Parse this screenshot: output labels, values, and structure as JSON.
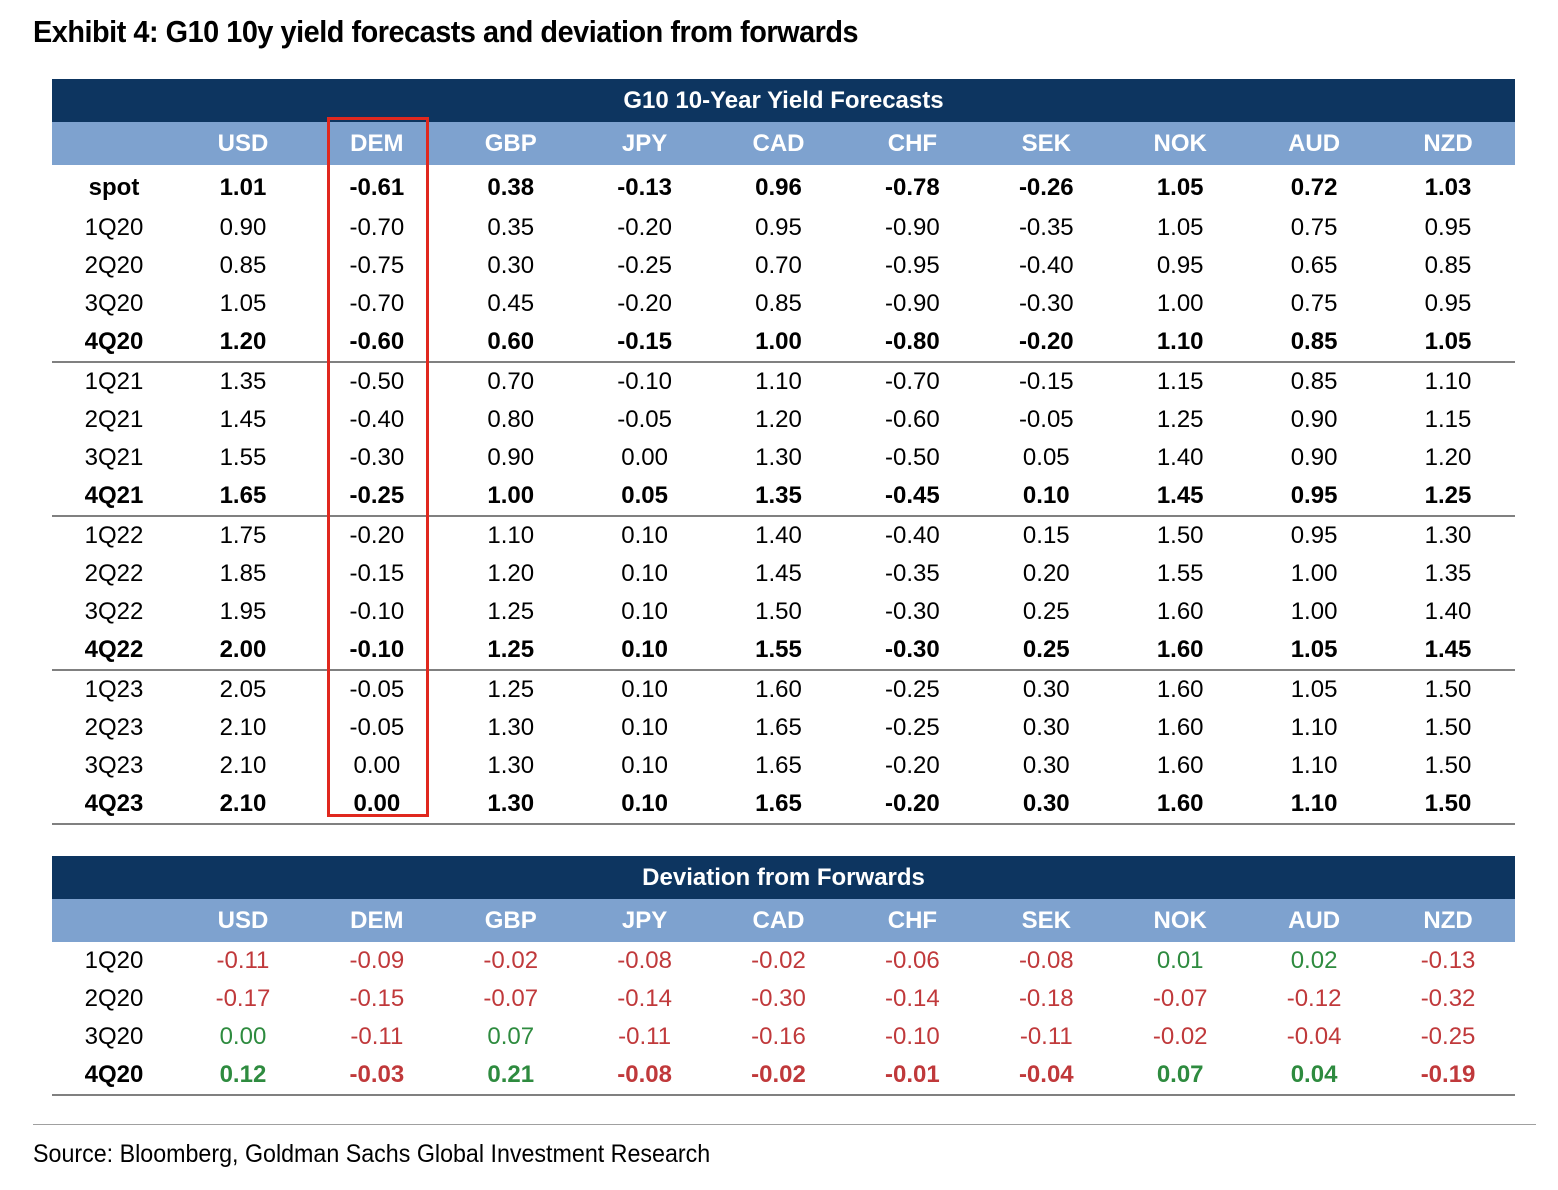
{
  "exhibit_title": "Exhibit 4: G10 10y yield forecasts and deviation from forwards",
  "currencies": [
    "USD",
    "DEM",
    "GBP",
    "JPY",
    "CAD",
    "CHF",
    "SEK",
    "NOK",
    "AUD",
    "NZD"
  ],
  "forecasts": {
    "title": "G10 10-Year Yield Forecasts",
    "rows": [
      {
        "label": "spot",
        "bold": true,
        "sep": false,
        "values": [
          "1.01",
          "-0.61",
          "0.38",
          "-0.13",
          "0.96",
          "-0.78",
          "-0.26",
          "1.05",
          "0.72",
          "1.03"
        ]
      },
      {
        "label": "1Q20",
        "bold": false,
        "sep": false,
        "values": [
          "0.90",
          "-0.70",
          "0.35",
          "-0.20",
          "0.95",
          "-0.90",
          "-0.35",
          "1.05",
          "0.75",
          "0.95"
        ]
      },
      {
        "label": "2Q20",
        "bold": false,
        "sep": false,
        "values": [
          "0.85",
          "-0.75",
          "0.30",
          "-0.25",
          "0.70",
          "-0.95",
          "-0.40",
          "0.95",
          "0.65",
          "0.85"
        ]
      },
      {
        "label": "3Q20",
        "bold": false,
        "sep": false,
        "values": [
          "1.05",
          "-0.70",
          "0.45",
          "-0.20",
          "0.85",
          "-0.90",
          "-0.30",
          "1.00",
          "0.75",
          "0.95"
        ]
      },
      {
        "label": "4Q20",
        "bold": true,
        "sep": true,
        "values": [
          "1.20",
          "-0.60",
          "0.60",
          "-0.15",
          "1.00",
          "-0.80",
          "-0.20",
          "1.10",
          "0.85",
          "1.05"
        ]
      },
      {
        "label": "1Q21",
        "bold": false,
        "sep": false,
        "values": [
          "1.35",
          "-0.50",
          "0.70",
          "-0.10",
          "1.10",
          "-0.70",
          "-0.15",
          "1.15",
          "0.85",
          "1.10"
        ]
      },
      {
        "label": "2Q21",
        "bold": false,
        "sep": false,
        "values": [
          "1.45",
          "-0.40",
          "0.80",
          "-0.05",
          "1.20",
          "-0.60",
          "-0.05",
          "1.25",
          "0.90",
          "1.15"
        ]
      },
      {
        "label": "3Q21",
        "bold": false,
        "sep": false,
        "values": [
          "1.55",
          "-0.30",
          "0.90",
          "0.00",
          "1.30",
          "-0.50",
          "0.05",
          "1.40",
          "0.90",
          "1.20"
        ]
      },
      {
        "label": "4Q21",
        "bold": true,
        "sep": true,
        "values": [
          "1.65",
          "-0.25",
          "1.00",
          "0.05",
          "1.35",
          "-0.45",
          "0.10",
          "1.45",
          "0.95",
          "1.25"
        ]
      },
      {
        "label": "1Q22",
        "bold": false,
        "sep": false,
        "values": [
          "1.75",
          "-0.20",
          "1.10",
          "0.10",
          "1.40",
          "-0.40",
          "0.15",
          "1.50",
          "0.95",
          "1.30"
        ]
      },
      {
        "label": "2Q22",
        "bold": false,
        "sep": false,
        "values": [
          "1.85",
          "-0.15",
          "1.20",
          "0.10",
          "1.45",
          "-0.35",
          "0.20",
          "1.55",
          "1.00",
          "1.35"
        ]
      },
      {
        "label": "3Q22",
        "bold": false,
        "sep": false,
        "values": [
          "1.95",
          "-0.10",
          "1.25",
          "0.10",
          "1.50",
          "-0.30",
          "0.25",
          "1.60",
          "1.00",
          "1.40"
        ]
      },
      {
        "label": "4Q22",
        "bold": true,
        "sep": true,
        "values": [
          "2.00",
          "-0.10",
          "1.25",
          "0.10",
          "1.55",
          "-0.30",
          "0.25",
          "1.60",
          "1.05",
          "1.45"
        ]
      },
      {
        "label": "1Q23",
        "bold": false,
        "sep": false,
        "values": [
          "2.05",
          "-0.05",
          "1.25",
          "0.10",
          "1.60",
          "-0.25",
          "0.30",
          "1.60",
          "1.05",
          "1.50"
        ]
      },
      {
        "label": "2Q23",
        "bold": false,
        "sep": false,
        "values": [
          "2.10",
          "-0.05",
          "1.30",
          "0.10",
          "1.65",
          "-0.25",
          "0.30",
          "1.60",
          "1.10",
          "1.50"
        ]
      },
      {
        "label": "3Q23",
        "bold": false,
        "sep": false,
        "values": [
          "2.10",
          "0.00",
          "1.30",
          "0.10",
          "1.65",
          "-0.20",
          "0.30",
          "1.60",
          "1.10",
          "1.50"
        ]
      },
      {
        "label": "4Q23",
        "bold": true,
        "sep": true,
        "values": [
          "2.10",
          "0.00",
          "1.30",
          "0.10",
          "1.65",
          "-0.20",
          "0.30",
          "1.60",
          "1.10",
          "1.50"
        ]
      }
    ]
  },
  "deviation": {
    "title": "Deviation from Forwards",
    "rows": [
      {
        "label": "1Q20",
        "bold": false,
        "sep": false,
        "values": [
          "-0.11",
          "-0.09",
          "-0.02",
          "-0.08",
          "-0.02",
          "-0.06",
          "-0.08",
          "0.01",
          "0.02",
          "-0.13"
        ]
      },
      {
        "label": "2Q20",
        "bold": false,
        "sep": false,
        "values": [
          "-0.17",
          "-0.15",
          "-0.07",
          "-0.14",
          "-0.30",
          "-0.14",
          "-0.18",
          "-0.07",
          "-0.12",
          "-0.32"
        ]
      },
      {
        "label": "3Q20",
        "bold": false,
        "sep": false,
        "values": [
          "0.00",
          "-0.11",
          "0.07",
          "-0.11",
          "-0.16",
          "-0.10",
          "-0.11",
          "-0.02",
          "-0.04",
          "-0.25"
        ]
      },
      {
        "label": "4Q20",
        "bold": true,
        "sep": true,
        "values": [
          "0.12",
          "-0.03",
          "0.21",
          "-0.08",
          "-0.02",
          "-0.01",
          "-0.04",
          "0.07",
          "0.04",
          "-0.19"
        ]
      }
    ]
  },
  "colors": {
    "title_bar": "#0d3560",
    "header_bar": "#7ea2cf",
    "negative": "#c0393b",
    "positive": "#2e8b3f",
    "highlight_box": "#e0281e"
  },
  "source": "Source: Bloomberg, Goldman Sachs Global Investment Research"
}
